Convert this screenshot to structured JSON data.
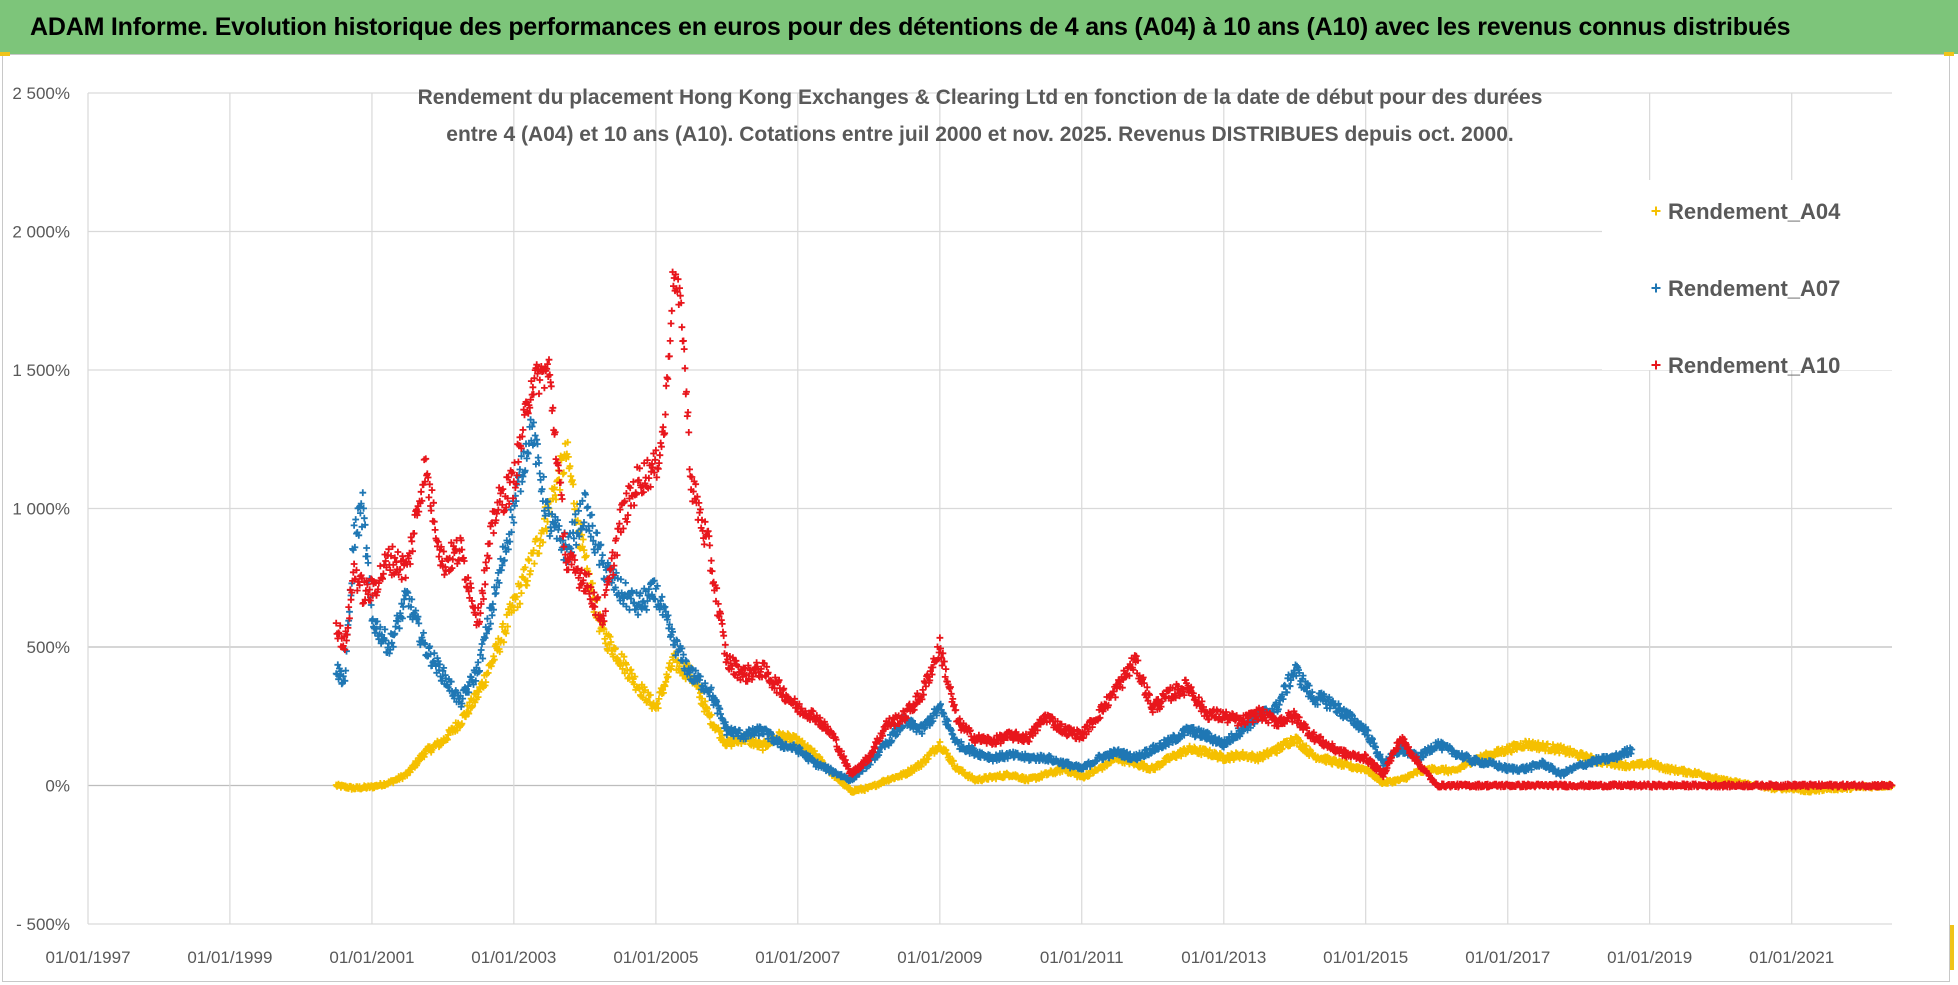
{
  "header": {
    "title": "ADAM Informe. Evolution historique des performances en euros pour des détentions de 4 ans (A04) à 10 ans (A10) avec les revenus connus distribués"
  },
  "colors": {
    "banner": "#7dc57a",
    "grid": "#d9d9d9",
    "axis_text": "#595959"
  },
  "chart_data": {
    "type": "scatter",
    "title_lines": [
      "Rendement du placement Hong Kong Exchanges & Clearing Ltd en fonction de la date de début pour des durées",
      "entre 4 (A04) et 10 ans (A10).  Cotations entre juil 2000 et nov. 2025. Revenus DISTRIBUES depuis oct. 2000."
    ],
    "xlim": [
      "1997-01-01",
      "2022-06-01"
    ],
    "ylim": [
      -500,
      2500
    ],
    "x_ticks": [
      "01/01/1997",
      "01/01/1999",
      "01/01/2001",
      "01/01/2003",
      "01/01/2005",
      "01/01/2007",
      "01/01/2009",
      "01/01/2011",
      "01/01/2013",
      "01/01/2015",
      "01/01/2017",
      "01/01/2019",
      "01/01/2021"
    ],
    "y_ticks": [
      {
        "value": 2500,
        "label": "2 500%"
      },
      {
        "value": 2000,
        "label": "2 000%"
      },
      {
        "value": 1500,
        "label": "1 500%"
      },
      {
        "value": 1000,
        "label": "1 000%"
      },
      {
        "value": 500,
        "label": "500%"
      },
      {
        "value": 0,
        "label": "0%"
      },
      {
        "value": -500,
        "label": "- 500%"
      }
    ],
    "grid": true,
    "legend_position": "right",
    "series": [
      {
        "name": "Rendement_A04",
        "color": "#f5c000",
        "points": [
          [
            "2000-07-01",
            0
          ],
          [
            "2000-10-01",
            -10
          ],
          [
            "2001-01-01",
            -5
          ],
          [
            "2001-04-01",
            10
          ],
          [
            "2001-07-01",
            40
          ],
          [
            "2001-10-01",
            120
          ],
          [
            "2002-01-01",
            160
          ],
          [
            "2002-04-01",
            230
          ],
          [
            "2002-07-01",
            330
          ],
          [
            "2002-10-01",
            480
          ],
          [
            "2003-01-01",
            650
          ],
          [
            "2003-04-01",
            800
          ],
          [
            "2003-07-01",
            1000
          ],
          [
            "2003-10-01",
            1200
          ],
          [
            "2004-01-01",
            800
          ],
          [
            "2004-04-01",
            550
          ],
          [
            "2004-07-01",
            460
          ],
          [
            "2004-10-01",
            360
          ],
          [
            "2005-01-01",
            280
          ],
          [
            "2005-04-01",
            450
          ],
          [
            "2005-07-01",
            400
          ],
          [
            "2005-10-01",
            250
          ],
          [
            "2006-01-01",
            150
          ],
          [
            "2006-04-01",
            170
          ],
          [
            "2006-07-01",
            140
          ],
          [
            "2006-10-01",
            180
          ],
          [
            "2007-01-01",
            160
          ],
          [
            "2007-04-01",
            110
          ],
          [
            "2007-07-01",
            40
          ],
          [
            "2007-10-01",
            -20
          ],
          [
            "2008-01-01",
            -10
          ],
          [
            "2008-04-01",
            20
          ],
          [
            "2008-07-01",
            40
          ],
          [
            "2008-10-01",
            80
          ],
          [
            "2009-01-01",
            150
          ],
          [
            "2009-04-01",
            60
          ],
          [
            "2009-07-01",
            20
          ],
          [
            "2009-10-01",
            30
          ],
          [
            "2010-01-01",
            40
          ],
          [
            "2010-04-01",
            20
          ],
          [
            "2010-07-01",
            40
          ],
          [
            "2010-10-01",
            60
          ],
          [
            "2011-01-01",
            30
          ],
          [
            "2011-04-01",
            60
          ],
          [
            "2011-07-01",
            100
          ],
          [
            "2011-10-01",
            80
          ],
          [
            "2012-01-01",
            60
          ],
          [
            "2012-04-01",
            100
          ],
          [
            "2012-07-01",
            130
          ],
          [
            "2012-10-01",
            120
          ],
          [
            "2013-01-01",
            100
          ],
          [
            "2013-04-01",
            110
          ],
          [
            "2013-07-01",
            100
          ],
          [
            "2013-10-01",
            130
          ],
          [
            "2014-01-01",
            170
          ],
          [
            "2014-04-01",
            110
          ],
          [
            "2014-07-01",
            90
          ],
          [
            "2014-10-01",
            70
          ],
          [
            "2015-01-01",
            60
          ],
          [
            "2015-04-01",
            10
          ],
          [
            "2015-07-01",
            20
          ],
          [
            "2015-10-01",
            50
          ],
          [
            "2016-01-01",
            60
          ],
          [
            "2016-04-01",
            50
          ],
          [
            "2016-07-01",
            90
          ],
          [
            "2016-10-01",
            110
          ],
          [
            "2017-01-01",
            130
          ],
          [
            "2017-04-01",
            150
          ],
          [
            "2017-07-01",
            140
          ],
          [
            "2017-10-01",
            130
          ],
          [
            "2018-01-01",
            110
          ],
          [
            "2018-04-01",
            90
          ],
          [
            "2018-07-01",
            80
          ],
          [
            "2018-10-01",
            70
          ],
          [
            "2019-01-01",
            80
          ],
          [
            "2019-04-01",
            60
          ],
          [
            "2019-07-01",
            50
          ],
          [
            "2019-10-01",
            40
          ],
          [
            "2020-01-01",
            20
          ],
          [
            "2020-04-01",
            10
          ],
          [
            "2020-07-01",
            0
          ],
          [
            "2020-10-01",
            -10
          ],
          [
            "2021-01-01",
            -10
          ],
          [
            "2021-04-01",
            -20
          ],
          [
            "2021-07-01",
            -10
          ],
          [
            "2021-10-01",
            -10
          ],
          [
            "2022-01-01",
            -5
          ],
          [
            "2022-06-01",
            0
          ]
        ]
      },
      {
        "name": "Rendement_A07",
        "color": "#1f77b4",
        "points": [
          [
            "2000-07-01",
            420
          ],
          [
            "2000-08-15",
            380
          ],
          [
            "2000-10-01",
            900
          ],
          [
            "2000-11-15",
            1000
          ],
          [
            "2001-01-01",
            600
          ],
          [
            "2001-04-01",
            500
          ],
          [
            "2001-07-01",
            680
          ],
          [
            "2001-10-01",
            500
          ],
          [
            "2002-01-01",
            400
          ],
          [
            "2002-04-01",
            300
          ],
          [
            "2002-07-01",
            420
          ],
          [
            "2002-10-01",
            700
          ],
          [
            "2003-01-01",
            1000
          ],
          [
            "2003-04-01",
            1300
          ],
          [
            "2003-07-01",
            950
          ],
          [
            "2003-10-01",
            850
          ],
          [
            "2004-01-01",
            1000
          ],
          [
            "2004-04-01",
            800
          ],
          [
            "2004-07-01",
            700
          ],
          [
            "2004-10-01",
            650
          ],
          [
            "2005-01-01",
            700
          ],
          [
            "2005-04-01",
            520
          ],
          [
            "2005-07-01",
            400
          ],
          [
            "2005-10-01",
            350
          ],
          [
            "2006-01-01",
            200
          ],
          [
            "2006-04-01",
            180
          ],
          [
            "2006-07-01",
            200
          ],
          [
            "2006-10-01",
            150
          ],
          [
            "2007-01-01",
            130
          ],
          [
            "2007-04-01",
            80
          ],
          [
            "2007-07-01",
            50
          ],
          [
            "2007-10-01",
            20
          ],
          [
            "2008-01-01",
            80
          ],
          [
            "2008-04-01",
            150
          ],
          [
            "2008-07-01",
            230
          ],
          [
            "2008-10-01",
            200
          ],
          [
            "2009-01-01",
            280
          ],
          [
            "2009-04-01",
            150
          ],
          [
            "2009-07-01",
            120
          ],
          [
            "2009-10-01",
            100
          ],
          [
            "2010-01-01",
            110
          ],
          [
            "2010-04-01",
            100
          ],
          [
            "2010-07-01",
            100
          ],
          [
            "2010-10-01",
            80
          ],
          [
            "2011-01-01",
            60
          ],
          [
            "2011-04-01",
            100
          ],
          [
            "2011-07-01",
            120
          ],
          [
            "2011-10-01",
            100
          ],
          [
            "2012-01-01",
            130
          ],
          [
            "2012-04-01",
            160
          ],
          [
            "2012-07-01",
            200
          ],
          [
            "2012-10-01",
            180
          ],
          [
            "2013-01-01",
            150
          ],
          [
            "2013-04-01",
            200
          ],
          [
            "2013-07-01",
            250
          ],
          [
            "2013-10-01",
            280
          ],
          [
            "2014-01-01",
            420
          ],
          [
            "2014-04-01",
            320
          ],
          [
            "2014-07-01",
            300
          ],
          [
            "2014-10-01",
            250
          ],
          [
            "2015-01-01",
            200
          ],
          [
            "2015-04-01",
            80
          ],
          [
            "2015-07-01",
            130
          ],
          [
            "2015-10-01",
            100
          ],
          [
            "2016-01-01",
            150
          ],
          [
            "2016-04-01",
            120
          ],
          [
            "2016-07-01",
            90
          ],
          [
            "2016-10-01",
            80
          ],
          [
            "2017-01-01",
            60
          ],
          [
            "2017-04-01",
            60
          ],
          [
            "2017-07-01",
            80
          ],
          [
            "2017-10-01",
            40
          ],
          [
            "2018-01-01",
            70
          ],
          [
            "2018-04-01",
            90
          ],
          [
            "2018-07-01",
            100
          ],
          [
            "2018-10-01",
            130
          ]
        ]
      },
      {
        "name": "Rendement_A10",
        "color": "#e8161c",
        "points": [
          [
            "2000-07-01",
            580
          ],
          [
            "2000-08-15",
            500
          ],
          [
            "2000-10-01",
            780
          ],
          [
            "2000-11-15",
            700
          ],
          [
            "2001-01-01",
            700
          ],
          [
            "2001-04-01",
            820
          ],
          [
            "2001-07-01",
            780
          ],
          [
            "2001-10-01",
            1150
          ],
          [
            "2002-01-01",
            800
          ],
          [
            "2002-04-01",
            850
          ],
          [
            "2002-07-01",
            600
          ],
          [
            "2002-10-01",
            1000
          ],
          [
            "2003-01-01",
            1100
          ],
          [
            "2003-04-01",
            1450
          ],
          [
            "2003-07-01",
            1500
          ],
          [
            "2003-10-01",
            800
          ],
          [
            "2004-01-01",
            750
          ],
          [
            "2004-04-01",
            600
          ],
          [
            "2004-07-01",
            950
          ],
          [
            "2004-10-01",
            1100
          ],
          [
            "2005-01-01",
            1150
          ],
          [
            "2005-02-15",
            1300
          ],
          [
            "2005-04-01",
            1850
          ],
          [
            "2005-05-15",
            1700
          ],
          [
            "2005-07-01",
            1100
          ],
          [
            "2005-10-01",
            850
          ],
          [
            "2006-01-01",
            450
          ],
          [
            "2006-04-01",
            400
          ],
          [
            "2006-07-01",
            420
          ],
          [
            "2006-10-01",
            350
          ],
          [
            "2007-01-01",
            280
          ],
          [
            "2007-04-01",
            250
          ],
          [
            "2007-07-01",
            180
          ],
          [
            "2007-10-01",
            40
          ],
          [
            "2008-01-01",
            100
          ],
          [
            "2008-04-01",
            220
          ],
          [
            "2008-07-01",
            250
          ],
          [
            "2008-10-01",
            330
          ],
          [
            "2009-01-01",
            500
          ],
          [
            "2009-04-01",
            230
          ],
          [
            "2009-07-01",
            170
          ],
          [
            "2009-10-01",
            160
          ],
          [
            "2010-01-01",
            180
          ],
          [
            "2010-04-01",
            170
          ],
          [
            "2010-07-01",
            250
          ],
          [
            "2010-10-01",
            200
          ],
          [
            "2011-01-01",
            180
          ],
          [
            "2011-04-01",
            260
          ],
          [
            "2011-07-01",
            350
          ],
          [
            "2011-10-01",
            450
          ],
          [
            "2012-01-01",
            280
          ],
          [
            "2012-04-01",
            330
          ],
          [
            "2012-07-01",
            360
          ],
          [
            "2012-10-01",
            260
          ],
          [
            "2013-01-01",
            250
          ],
          [
            "2013-04-01",
            230
          ],
          [
            "2013-07-01",
            260
          ],
          [
            "2013-10-01",
            230
          ],
          [
            "2014-01-01",
            250
          ],
          [
            "2014-04-01",
            180
          ],
          [
            "2014-07-01",
            140
          ],
          [
            "2014-10-01",
            110
          ],
          [
            "2015-01-01",
            100
          ],
          [
            "2015-04-01",
            40
          ],
          [
            "2015-07-01",
            170
          ],
          [
            "2015-10-01",
            80
          ],
          [
            "2016-01-01",
            0
          ],
          [
            "2017-01-01",
            0
          ],
          [
            "2018-01-01",
            0
          ],
          [
            "2019-01-01",
            0
          ],
          [
            "2020-01-01",
            0
          ],
          [
            "2021-01-01",
            0
          ],
          [
            "2022-06-01",
            0
          ]
        ]
      }
    ]
  }
}
